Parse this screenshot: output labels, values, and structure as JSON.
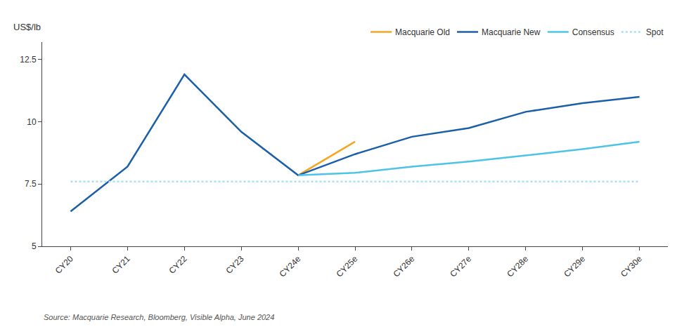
{
  "chart_data": {
    "type": "line",
    "ylabel": "US$/lb",
    "annotations": [
      "Source: Macquarie Research, Bloomberg, Visible Alpha, June 2024"
    ],
    "categories": [
      "CY20",
      "CY21",
      "CY22",
      "CY23",
      "CY24e",
      "CY25e",
      "CY26e",
      "CY27e",
      "CY28e",
      "CY29e",
      "CY30e"
    ],
    "series": [
      {
        "name": "Macquarie Old",
        "color": "#f5a623",
        "line_style": "solid",
        "values": [
          null,
          null,
          null,
          null,
          7.85,
          9.2,
          null,
          null,
          null,
          null,
          null
        ]
      },
      {
        "name": "Macquarie New",
        "color": "#1a5fa8",
        "line_style": "solid",
        "values": [
          6.4,
          8.2,
          11.9,
          9.6,
          7.85,
          8.7,
          9.4,
          9.75,
          10.4,
          10.75,
          11.0
        ]
      },
      {
        "name": "Consensus",
        "color": "#4dc3e8",
        "line_style": "solid",
        "values": [
          null,
          null,
          null,
          null,
          7.85,
          7.95,
          8.2,
          8.4,
          8.65,
          8.9,
          9.2
        ]
      },
      {
        "name": "Spot",
        "color": "#a8e0f5",
        "line_style": "dotted",
        "values": [
          7.6,
          7.6,
          7.6,
          7.6,
          7.6,
          7.6,
          7.6,
          7.6,
          7.6,
          7.6,
          7.6
        ]
      }
    ],
    "ylim": [
      5,
      13.2
    ],
    "yticks": [
      5,
      7.5,
      10,
      12.5
    ],
    "grid": false,
    "legend": "upper center"
  }
}
